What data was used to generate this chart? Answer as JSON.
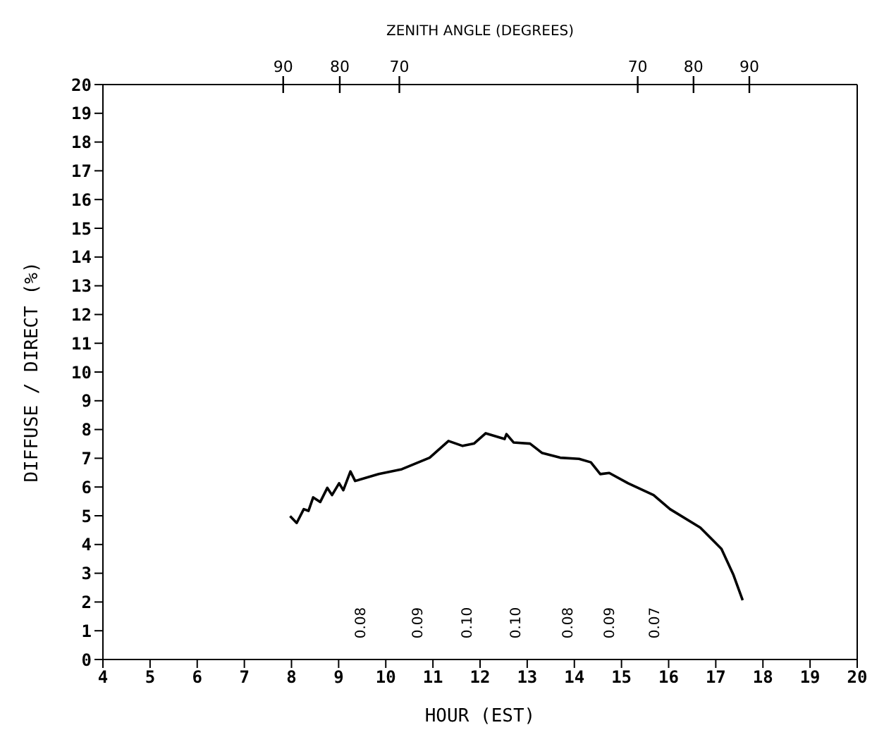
{
  "chart_data": {
    "type": "line",
    "xlabel": "HOUR (EST)",
    "ylabel": "DIFFUSE / DIRECT  (%)",
    "x2label": "ZENITH ANGLE (DEGREES)",
    "x": [
      7.97,
      8.11,
      8.26,
      8.36,
      8.46,
      8.61,
      8.76,
      8.86,
      9.01,
      9.1,
      9.25,
      9.35,
      9.85,
      10.34,
      10.93,
      11.33,
      11.63,
      11.87,
      12.12,
      12.52,
      12.56,
      12.71,
      13.06,
      13.31,
      13.7,
      14.1,
      14.35,
      14.55,
      14.74,
      15.14,
      15.68,
      16.03,
      16.67,
      17.12,
      17.37,
      17.57
    ],
    "values": [
      4.99,
      4.75,
      5.23,
      5.17,
      5.64,
      5.48,
      5.97,
      5.72,
      6.13,
      5.89,
      6.54,
      6.21,
      6.45,
      6.62,
      7.02,
      7.6,
      7.43,
      7.51,
      7.87,
      7.67,
      7.84,
      7.55,
      7.51,
      7.19,
      7.02,
      6.98,
      6.86,
      6.45,
      6.49,
      6.13,
      5.72,
      5.23,
      4.59,
      3.85,
      2.96,
      2.06
    ],
    "color": "#000000",
    "line_style": "solid",
    "xlim": [
      4,
      20
    ],
    "xticks": [
      4,
      5,
      6,
      7,
      8,
      9,
      10,
      11,
      12,
      13,
      14,
      15,
      16,
      17,
      18,
      19,
      20
    ],
    "ylim": [
      0,
      20
    ],
    "yticks": [
      0,
      1,
      2,
      3,
      4,
      5,
      6,
      7,
      8,
      9,
      10,
      11,
      12,
      13,
      14,
      15,
      16,
      17,
      18,
      19,
      20
    ],
    "annotations": [
      "90",
      "80",
      "70",
      "70",
      "80",
      "90",
      "0.08",
      "0.09",
      "0.10",
      "0.10",
      "0.08",
      "0.09",
      "0.07"
    ]
  }
}
